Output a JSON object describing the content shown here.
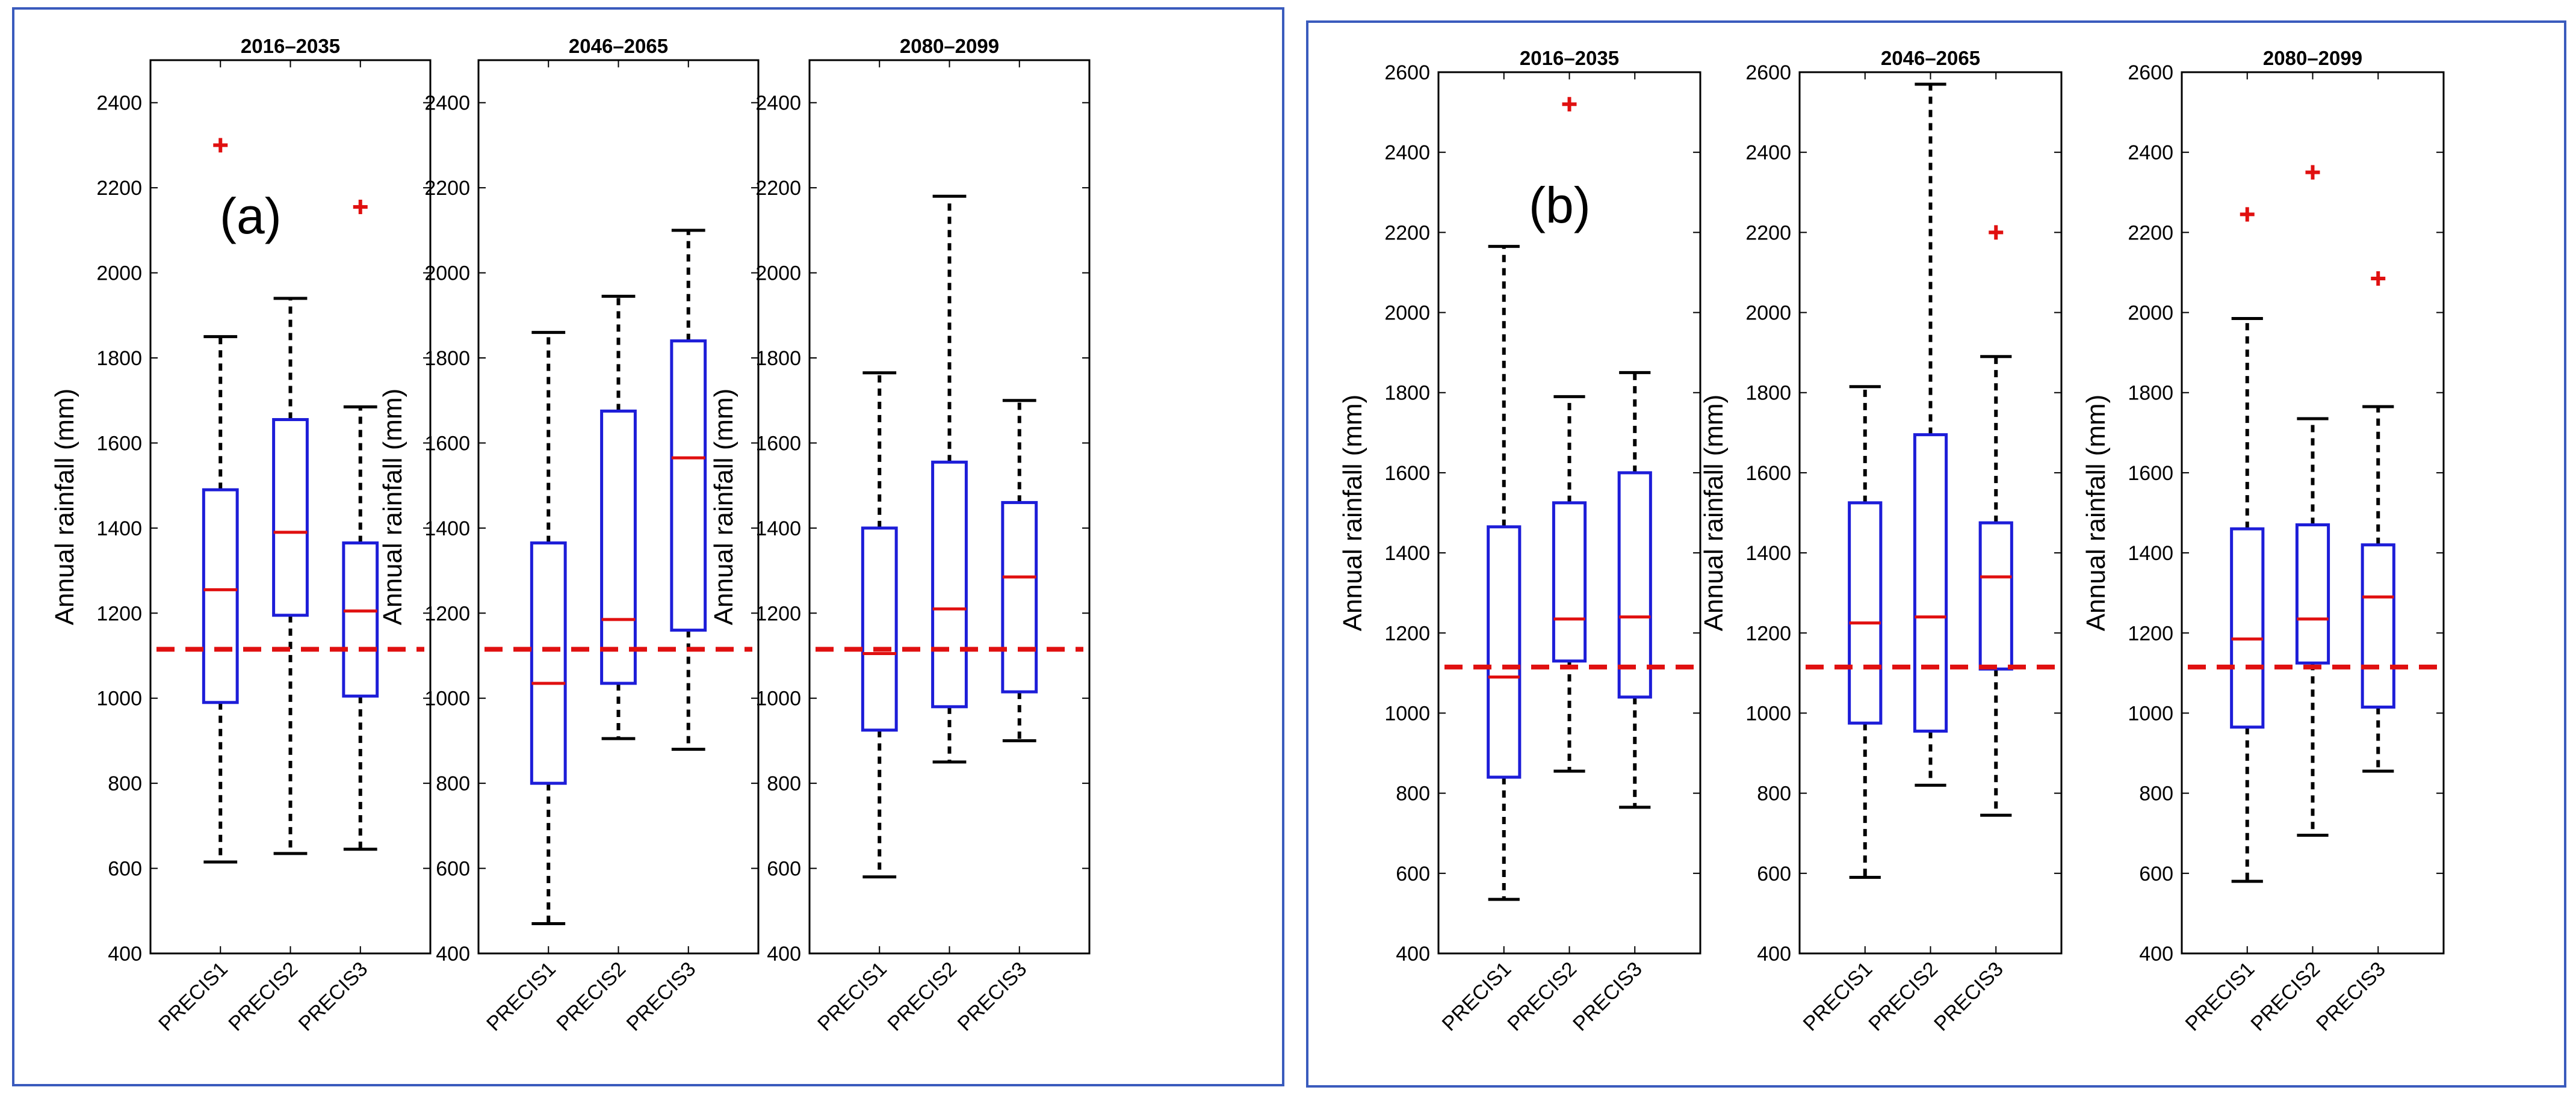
{
  "colors": {
    "frame": "#3A5BBD",
    "box": "#1D1DD8",
    "median": "#E01010",
    "baseline": "#E01010",
    "outlier": "#E01010",
    "whisker": "#000000"
  },
  "chart_data": [
    {
      "type": "box",
      "group_label": "(a)",
      "panels": [
        {
          "title": "2016–2035",
          "ylabel": "Annual rainfall (mm)",
          "ylim": [
            400,
            2500
          ],
          "yticks": [
            "400",
            "600",
            "800",
            "1000",
            "1200",
            "1400",
            "1600",
            "1800",
            "2000",
            "2200",
            "2400"
          ],
          "baseline": 1115,
          "boxes": [
            {
              "label": "PRECIS1",
              "whisker_low": 615,
              "q1": 990,
              "median": 1255,
              "q3": 1490,
              "whisker_high": 1850,
              "outliers": [
                2300
              ]
            },
            {
              "label": "PRECIS2",
              "whisker_low": 635,
              "q1": 1195,
              "median": 1390,
              "q3": 1655,
              "whisker_high": 1940,
              "outliers": []
            },
            {
              "label": "PRECIS3",
              "whisker_low": 645,
              "q1": 1005,
              "median": 1205,
              "q3": 1365,
              "whisker_high": 1685,
              "outliers": [
                2155
              ]
            }
          ]
        },
        {
          "title": "2046–2065",
          "ylabel": "Annual rainfall (mm)",
          "ylim": [
            400,
            2500
          ],
          "yticks": [
            "400",
            "600",
            "800",
            "1000",
            "1200",
            "1400",
            "1600",
            "1800",
            "2000",
            "2200",
            "2400"
          ],
          "baseline": 1115,
          "boxes": [
            {
              "label": "PRECIS1",
              "whisker_low": 470,
              "q1": 800,
              "median": 1035,
              "q3": 1365,
              "whisker_high": 1860,
              "outliers": []
            },
            {
              "label": "PRECIS2",
              "whisker_low": 905,
              "q1": 1035,
              "median": 1185,
              "q3": 1675,
              "whisker_high": 1945,
              "outliers": []
            },
            {
              "label": "PRECIS3",
              "whisker_low": 880,
              "q1": 1160,
              "median": 1565,
              "q3": 1840,
              "whisker_high": 2100,
              "outliers": []
            }
          ]
        },
        {
          "title": "2080–2099",
          "ylabel": "Annual rainfall (mm)",
          "ylim": [
            400,
            2500
          ],
          "yticks": [
            "400",
            "600",
            "800",
            "1000",
            "1200",
            "1400",
            "1600",
            "1800",
            "2000",
            "2200",
            "2400"
          ],
          "baseline": 1115,
          "boxes": [
            {
              "label": "PRECIS1",
              "whisker_low": 580,
              "q1": 925,
              "median": 1105,
              "q3": 1400,
              "whisker_high": 1765,
              "outliers": []
            },
            {
              "label": "PRECIS2",
              "whisker_low": 850,
              "q1": 980,
              "median": 1210,
              "q3": 1555,
              "whisker_high": 2180,
              "outliers": []
            },
            {
              "label": "PRECIS3",
              "whisker_low": 900,
              "q1": 1015,
              "median": 1285,
              "q3": 1460,
              "whisker_high": 1700,
              "outliers": []
            }
          ]
        }
      ]
    },
    {
      "type": "box",
      "group_label": "(b)",
      "panels": [
        {
          "title": "2016–2035",
          "ylabel": "Annual rainfall (mm)",
          "ylim": [
            400,
            2600
          ],
          "yticks": [
            "400",
            "600",
            "800",
            "1000",
            "1200",
            "1400",
            "1600",
            "1800",
            "2000",
            "2200",
            "2400",
            "2600"
          ],
          "baseline": 1115,
          "boxes": [
            {
              "label": "PRECIS1",
              "whisker_low": 535,
              "q1": 840,
              "median": 1090,
              "q3": 1465,
              "whisker_high": 2165,
              "outliers": []
            },
            {
              "label": "PRECIS2",
              "whisker_low": 855,
              "q1": 1130,
              "median": 1235,
              "q3": 1525,
              "whisker_high": 1790,
              "outliers": [
                2520
              ]
            },
            {
              "label": "PRECIS3",
              "whisker_low": 765,
              "q1": 1040,
              "median": 1240,
              "q3": 1600,
              "whisker_high": 1850,
              "outliers": []
            }
          ]
        },
        {
          "title": "2046–2065",
          "ylabel": "Annual rainfall (mm)",
          "ylim": [
            400,
            2600
          ],
          "yticks": [
            "400",
            "600",
            "800",
            "1000",
            "1200",
            "1400",
            "1600",
            "1800",
            "2000",
            "2200",
            "2400",
            "2600"
          ],
          "baseline": 1115,
          "boxes": [
            {
              "label": "PRECIS1",
              "whisker_low": 590,
              "q1": 975,
              "median": 1225,
              "q3": 1525,
              "whisker_high": 1815,
              "outliers": []
            },
            {
              "label": "PRECIS2",
              "whisker_low": 820,
              "q1": 955,
              "median": 1240,
              "q3": 1695,
              "whisker_high": 2570,
              "outliers": []
            },
            {
              "label": "PRECIS3",
              "whisker_low": 745,
              "q1": 1110,
              "median": 1340,
              "q3": 1475,
              "whisker_high": 1890,
              "outliers": [
                2200
              ]
            }
          ]
        },
        {
          "title": "2080–2099",
          "ylabel": "Annual rainfall (mm)",
          "ylim": [
            400,
            2600
          ],
          "yticks": [
            "400",
            "600",
            "800",
            "1000",
            "1200",
            "1400",
            "1600",
            "1800",
            "2000",
            "2200",
            "2400",
            "2600"
          ],
          "baseline": 1115,
          "boxes": [
            {
              "label": "PRECIS1",
              "whisker_low": 580,
              "q1": 965,
              "median": 1185,
              "q3": 1460,
              "whisker_high": 1985,
              "outliers": [
                2245
              ]
            },
            {
              "label": "PRECIS2",
              "whisker_low": 695,
              "q1": 1125,
              "median": 1235,
              "q3": 1470,
              "whisker_high": 1735,
              "outliers": [
                2350
              ]
            },
            {
              "label": "PRECIS3",
              "whisker_low": 855,
              "q1": 1015,
              "median": 1290,
              "q3": 1420,
              "whisker_high": 1765,
              "outliers": [
                2085
              ]
            }
          ]
        }
      ]
    }
  ]
}
